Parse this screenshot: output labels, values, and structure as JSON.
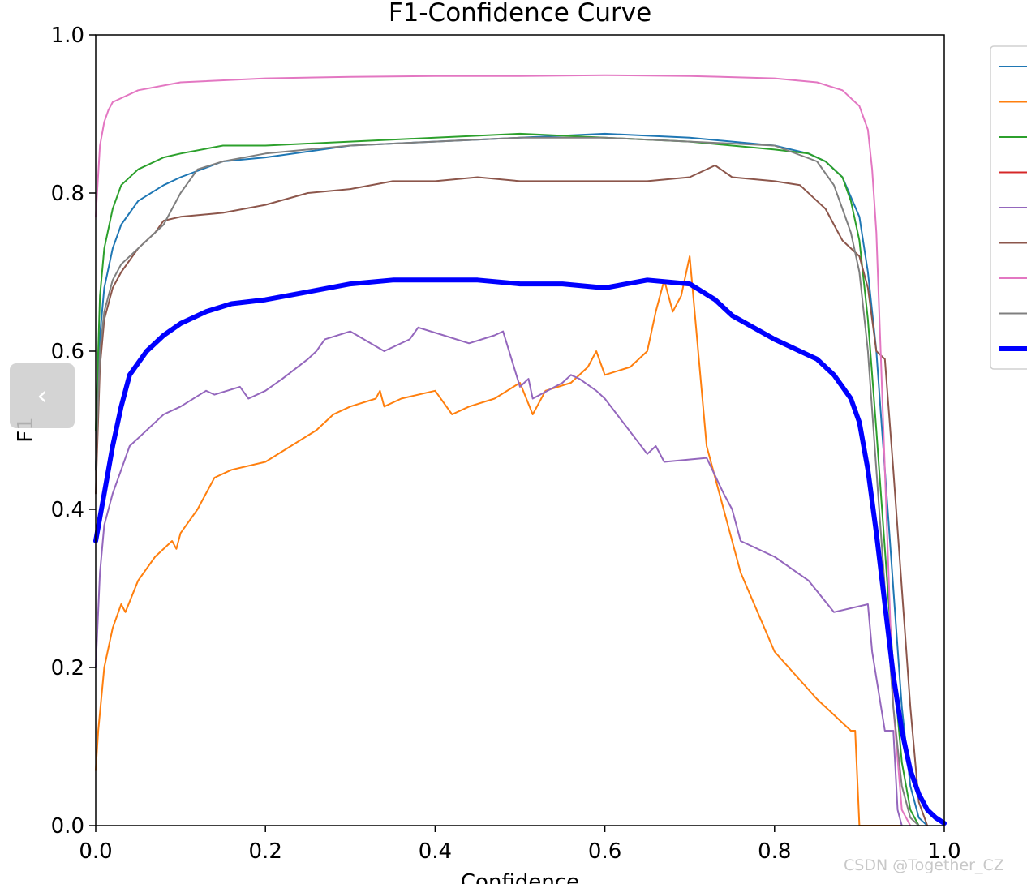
{
  "chart_data": {
    "type": "line",
    "title": "F1-Confidence Curve",
    "xlabel": "Confidence",
    "ylabel": "F1",
    "xlim": [
      0,
      1
    ],
    "ylim": [
      0,
      1
    ],
    "xticks": [
      "0.0",
      "0.2",
      "0.4",
      "0.6",
      "0.8",
      "1.0"
    ],
    "yticks": [
      "0.0",
      "0.2",
      "0.4",
      "0.6",
      "0.8",
      "1.0"
    ],
    "grid": false,
    "legend": "right (partially cropped, labels not visible)",
    "series": [
      {
        "color": "#1f77b4",
        "width": 2,
        "x": [
          0,
          0.005,
          0.01,
          0.02,
          0.03,
          0.05,
          0.08,
          0.1,
          0.15,
          0.2,
          0.3,
          0.4,
          0.5,
          0.6,
          0.7,
          0.8,
          0.84,
          0.86,
          0.88,
          0.9,
          0.91,
          0.92,
          0.93,
          0.94,
          0.95,
          0.96,
          0.97,
          0.98
        ],
        "y": [
          0.45,
          0.62,
          0.68,
          0.73,
          0.76,
          0.79,
          0.81,
          0.82,
          0.84,
          0.845,
          0.86,
          0.865,
          0.87,
          0.875,
          0.87,
          0.86,
          0.85,
          0.84,
          0.82,
          0.77,
          0.7,
          0.6,
          0.45,
          0.3,
          0.15,
          0.05,
          0.01,
          0
        ]
      },
      {
        "color": "#ff7f0e",
        "width": 2,
        "x": [
          0,
          0.003,
          0.01,
          0.02,
          0.03,
          0.035,
          0.05,
          0.07,
          0.09,
          0.095,
          0.1,
          0.12,
          0.14,
          0.16,
          0.2,
          0.23,
          0.26,
          0.28,
          0.3,
          0.33,
          0.335,
          0.34,
          0.36,
          0.4,
          0.42,
          0.44,
          0.47,
          0.5,
          0.515,
          0.53,
          0.56,
          0.58,
          0.59,
          0.6,
          0.63,
          0.65,
          0.66,
          0.67,
          0.68,
          0.69,
          0.7,
          0.72,
          0.76,
          0.8,
          0.85,
          0.89,
          0.895,
          0.9,
          0.95
        ],
        "y": [
          0.07,
          0.12,
          0.2,
          0.25,
          0.28,
          0.27,
          0.31,
          0.34,
          0.36,
          0.35,
          0.37,
          0.4,
          0.44,
          0.45,
          0.46,
          0.48,
          0.5,
          0.52,
          0.53,
          0.54,
          0.55,
          0.53,
          0.54,
          0.55,
          0.52,
          0.53,
          0.54,
          0.56,
          0.52,
          0.55,
          0.56,
          0.58,
          0.6,
          0.57,
          0.58,
          0.6,
          0.65,
          0.69,
          0.65,
          0.67,
          0.72,
          0.48,
          0.32,
          0.22,
          0.16,
          0.12,
          0.12,
          0,
          0
        ]
      },
      {
        "color": "#2ca02c",
        "width": 2,
        "x": [
          0,
          0.005,
          0.01,
          0.02,
          0.03,
          0.05,
          0.08,
          0.1,
          0.15,
          0.2,
          0.3,
          0.4,
          0.5,
          0.6,
          0.7,
          0.8,
          0.84,
          0.86,
          0.88,
          0.89,
          0.9,
          0.91,
          0.92,
          0.93,
          0.94,
          0.95,
          0.96,
          0.97
        ],
        "y": [
          0.5,
          0.67,
          0.73,
          0.78,
          0.81,
          0.83,
          0.845,
          0.85,
          0.86,
          0.86,
          0.865,
          0.87,
          0.875,
          0.87,
          0.865,
          0.855,
          0.85,
          0.84,
          0.82,
          0.79,
          0.74,
          0.64,
          0.5,
          0.35,
          0.2,
          0.08,
          0.02,
          0
        ]
      },
      {
        "color": "#9467bd",
        "width": 2,
        "x": [
          0,
          0.005,
          0.01,
          0.015,
          0.02,
          0.03,
          0.04,
          0.05,
          0.06,
          0.07,
          0.08,
          0.1,
          0.13,
          0.14,
          0.17,
          0.18,
          0.2,
          0.22,
          0.25,
          0.26,
          0.27,
          0.3,
          0.34,
          0.37,
          0.38,
          0.41,
          0.44,
          0.47,
          0.48,
          0.5,
          0.51,
          0.515,
          0.55,
          0.56,
          0.57,
          0.59,
          0.6,
          0.65,
          0.66,
          0.67,
          0.72,
          0.74,
          0.75,
          0.76,
          0.8,
          0.84,
          0.87,
          0.91,
          0.915,
          0.93,
          0.94,
          0.945,
          0.95
        ],
        "y": [
          0.2,
          0.32,
          0.38,
          0.4,
          0.42,
          0.45,
          0.48,
          0.49,
          0.5,
          0.51,
          0.52,
          0.53,
          0.55,
          0.545,
          0.555,
          0.54,
          0.55,
          0.565,
          0.59,
          0.6,
          0.615,
          0.625,
          0.6,
          0.615,
          0.63,
          0.62,
          0.61,
          0.62,
          0.625,
          0.555,
          0.565,
          0.54,
          0.56,
          0.57,
          0.565,
          0.55,
          0.54,
          0.47,
          0.48,
          0.46,
          0.465,
          0.42,
          0.4,
          0.36,
          0.34,
          0.31,
          0.27,
          0.28,
          0.22,
          0.12,
          0.12,
          0.02,
          0
        ]
      },
      {
        "color": "#8c564b",
        "width": 2,
        "x": [
          0,
          0.005,
          0.01,
          0.02,
          0.03,
          0.05,
          0.07,
          0.08,
          0.1,
          0.15,
          0.2,
          0.25,
          0.3,
          0.35,
          0.4,
          0.45,
          0.5,
          0.55,
          0.6,
          0.65,
          0.7,
          0.73,
          0.75,
          0.8,
          0.83,
          0.85,
          0.86,
          0.87,
          0.88,
          0.9,
          0.91,
          0.92,
          0.93,
          0.94,
          0.95,
          0.96,
          0.97,
          0.98
        ],
        "y": [
          0.42,
          0.58,
          0.64,
          0.68,
          0.7,
          0.73,
          0.75,
          0.765,
          0.77,
          0.775,
          0.785,
          0.8,
          0.805,
          0.815,
          0.815,
          0.82,
          0.815,
          0.815,
          0.815,
          0.815,
          0.82,
          0.835,
          0.82,
          0.815,
          0.81,
          0.79,
          0.78,
          0.76,
          0.74,
          0.72,
          0.68,
          0.6,
          0.59,
          0.45,
          0.3,
          0.15,
          0.03,
          0
        ]
      },
      {
        "color": "#e377c2",
        "width": 2,
        "x": [
          0,
          0.005,
          0.01,
          0.015,
          0.02,
          0.03,
          0.05,
          0.1,
          0.2,
          0.3,
          0.4,
          0.5,
          0.6,
          0.7,
          0.8,
          0.85,
          0.88,
          0.9,
          0.91,
          0.915,
          0.92,
          0.925,
          0.93,
          0.935,
          0.94,
          0.95,
          0.96
        ],
        "y": [
          0.77,
          0.86,
          0.89,
          0.905,
          0.915,
          0.92,
          0.93,
          0.94,
          0.945,
          0.947,
          0.948,
          0.948,
          0.949,
          0.948,
          0.945,
          0.94,
          0.93,
          0.91,
          0.88,
          0.83,
          0.75,
          0.6,
          0.45,
          0.3,
          0.15,
          0.02,
          0
        ]
      },
      {
        "color": "#7f7f7f",
        "width": 2,
        "x": [
          0,
          0.005,
          0.01,
          0.02,
          0.03,
          0.05,
          0.08,
          0.09,
          0.1,
          0.12,
          0.15,
          0.2,
          0.3,
          0.4,
          0.5,
          0.6,
          0.7,
          0.8,
          0.85,
          0.87,
          0.88,
          0.89,
          0.9,
          0.91,
          0.92,
          0.93,
          0.94,
          0.95,
          0.96,
          0.97
        ],
        "y": [
          0.45,
          0.6,
          0.65,
          0.69,
          0.71,
          0.73,
          0.76,
          0.78,
          0.8,
          0.83,
          0.84,
          0.85,
          0.86,
          0.865,
          0.87,
          0.87,
          0.865,
          0.86,
          0.84,
          0.81,
          0.78,
          0.75,
          0.7,
          0.6,
          0.45,
          0.3,
          0.15,
          0.05,
          0.01,
          0
        ]
      },
      {
        "color": "#0000ff",
        "width": 6,
        "x": [
          0,
          0.01,
          0.02,
          0.03,
          0.04,
          0.06,
          0.08,
          0.1,
          0.13,
          0.16,
          0.2,
          0.25,
          0.3,
          0.35,
          0.4,
          0.45,
          0.5,
          0.55,
          0.6,
          0.65,
          0.7,
          0.73,
          0.75,
          0.8,
          0.85,
          0.87,
          0.89,
          0.9,
          0.91,
          0.92,
          0.93,
          0.94,
          0.95,
          0.96,
          0.97,
          0.98,
          0.99,
          1.0
        ],
        "y": [
          0.36,
          0.42,
          0.48,
          0.53,
          0.57,
          0.6,
          0.62,
          0.635,
          0.65,
          0.66,
          0.665,
          0.675,
          0.685,
          0.69,
          0.69,
          0.69,
          0.685,
          0.685,
          0.68,
          0.69,
          0.685,
          0.665,
          0.645,
          0.615,
          0.59,
          0.57,
          0.54,
          0.51,
          0.45,
          0.37,
          0.28,
          0.19,
          0.12,
          0.07,
          0.04,
          0.02,
          0.01,
          0.003
        ]
      }
    ]
  },
  "legend_entries": [
    {
      "color": "#1f77b4",
      "width": 2
    },
    {
      "color": "#ff7f0e",
      "width": 2
    },
    {
      "color": "#2ca02c",
      "width": 2
    },
    {
      "color": "#d62728",
      "width": 2
    },
    {
      "color": "#9467bd",
      "width": 2
    },
    {
      "color": "#8c564b",
      "width": 2
    },
    {
      "color": "#e377c2",
      "width": 2
    },
    {
      "color": "#7f7f7f",
      "width": 2
    },
    {
      "color": "#0000ff",
      "width": 6
    }
  ],
  "ui": {
    "back_button_icon": "chevron-left-icon",
    "back_button_glyph": "‹",
    "watermark": "CSDN @Together_CZ"
  }
}
